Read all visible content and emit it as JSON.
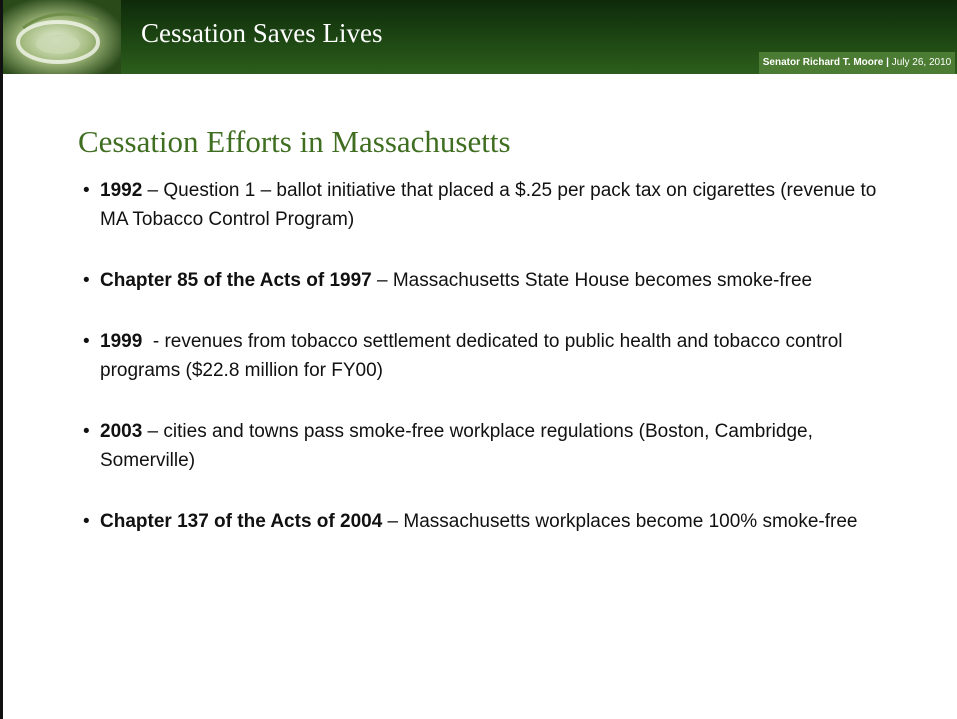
{
  "header": {
    "title": "Cessation Saves Lives",
    "presenter": "Senator Richard T. Moore",
    "separator": "|",
    "date": "July 26, 2010"
  },
  "slide": {
    "title": "Cessation Efforts in Massachusetts",
    "bullets": [
      {
        "bold": "1992",
        "text": " – Question 1 – ballot initiative that placed a $.25 per pack tax on cigarettes (revenue to MA Tobacco Control Program)"
      },
      {
        "bold": "Chapter 85 of the Acts of 1997",
        "text": " – Massachusetts State House becomes smoke-free"
      },
      {
        "bold": "1999",
        "text": "  - revenues from tobacco settlement dedicated to public health and tobacco control programs ($22.8 million for FY00)"
      },
      {
        "bold": "2003",
        "text": " – cities and towns pass smoke-free workplace regulations (Boston, Cambridge, Somerville)"
      },
      {
        "bold": "Chapter 137 of the Acts of 2004",
        "text": " – Massachusetts workplaces become 100% smoke-free"
      }
    ]
  }
}
